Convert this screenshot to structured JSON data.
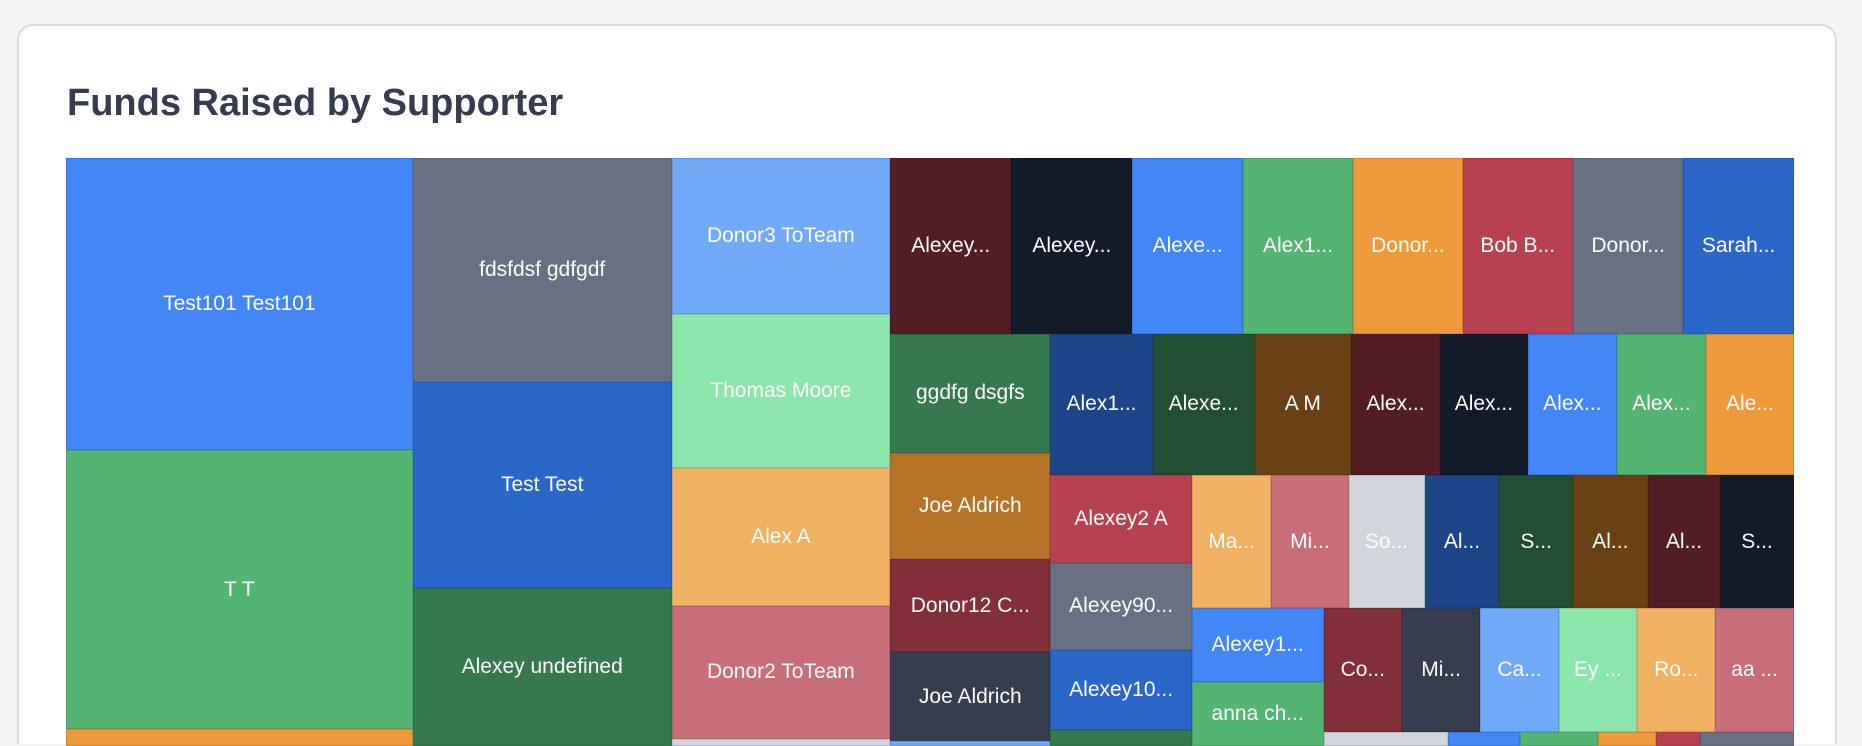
{
  "chart_data": {
    "type": "treemap",
    "title": "Funds Raised by Supporter",
    "items": [
      {
        "label": "Test101 Test101",
        "color": "#4287f5"
      },
      {
        "label": "T T",
        "color": "#54b472"
      },
      {
        "label": "",
        "color": "#ee9a3a"
      },
      {
        "label": "fdsfdsf gdfgdf",
        "color": "#687184"
      },
      {
        "label": "Test Test",
        "color": "#2b66c9"
      },
      {
        "label": "Alexey undefined",
        "color": "#357a4e"
      },
      {
        "label": "Donor3 ToTeam",
        "color": "#70a9f8"
      },
      {
        "label": "Thomas Moore",
        "color": "#8ce5aa"
      },
      {
        "label": "Alex A",
        "color": "#f1b263"
      },
      {
        "label": "Donor2 ToTeam",
        "color": "#c86e78"
      },
      {
        "label": "",
        "color": "#d1d5dc"
      },
      {
        "label": "Alexey...",
        "color": "#531d24"
      },
      {
        "label": "Alexey...",
        "color": "#131a2a"
      },
      {
        "label": "Alexe...",
        "color": "#4287f5"
      },
      {
        "label": "Alex1...",
        "color": "#54b472"
      },
      {
        "label": "Donor...",
        "color": "#ee9a3a"
      },
      {
        "label": "Bob B...",
        "color": "#b8414f"
      },
      {
        "label": "Donor...",
        "color": "#687184"
      },
      {
        "label": "Sarah...",
        "color": "#2b66c9"
      },
      {
        "label": "ggdfg dsgfs",
        "color": "#357a4e"
      },
      {
        "label": "Joe Aldrich",
        "color": "#b67428"
      },
      {
        "label": "Donor12 C...",
        "color": "#812f38"
      },
      {
        "label": "Joe Aldrich",
        "color": "#363d4f"
      },
      {
        "label": "",
        "color": "#70a9f8"
      },
      {
        "label": "Alex1...",
        "color": "#1c4588"
      },
      {
        "label": "Alexe...",
        "color": "#224f33"
      },
      {
        "label": "A M",
        "color": "#6a4115"
      },
      {
        "label": "Alex...",
        "color": "#531d24"
      },
      {
        "label": "Alex...",
        "color": "#131a2a"
      },
      {
        "label": "Alex...",
        "color": "#4287f5"
      },
      {
        "label": "Alex...",
        "color": "#54b472"
      },
      {
        "label": "Ale...",
        "color": "#ee9a3a"
      },
      {
        "label": "Alexey2 A",
        "color": "#b8414f"
      },
      {
        "label": "Alexey90...",
        "color": "#687184"
      },
      {
        "label": "Alexey10...",
        "color": "#2b66c9"
      },
      {
        "label": "",
        "color": "#357a4e"
      },
      {
        "label": "Ma...",
        "color": "#f1b263"
      },
      {
        "label": "Mi...",
        "color": "#c86e78"
      },
      {
        "label": "So...",
        "color": "#d1d5dc"
      },
      {
        "label": "Al...",
        "color": "#1c4588"
      },
      {
        "label": "S...",
        "color": "#224f33"
      },
      {
        "label": "Al...",
        "color": "#6a4115"
      },
      {
        "label": "Al...",
        "color": "#531d24"
      },
      {
        "label": "S...",
        "color": "#131a2a"
      },
      {
        "label": "Alexey1...",
        "color": "#4287f5"
      },
      {
        "label": "anna ch...",
        "color": "#54b472"
      },
      {
        "label": "Co...",
        "color": "#812f38"
      },
      {
        "label": "Mi...",
        "color": "#363d4f"
      },
      {
        "label": "Ca...",
        "color": "#70a9f8"
      },
      {
        "label": "Ey ...",
        "color": "#8ce5aa"
      },
      {
        "label": "Ro...",
        "color": "#f1b263"
      },
      {
        "label": "aa ...",
        "color": "#c86e78"
      },
      {
        "label": "",
        "color": "#d1d5dc"
      },
      {
        "label": "",
        "color": "#4287f5"
      },
      {
        "label": "",
        "color": "#54b472"
      },
      {
        "label": "",
        "color": "#ee9a3a"
      },
      {
        "label": "",
        "color": "#b8414f"
      },
      {
        "label": "",
        "color": "#687184"
      }
    ]
  }
}
